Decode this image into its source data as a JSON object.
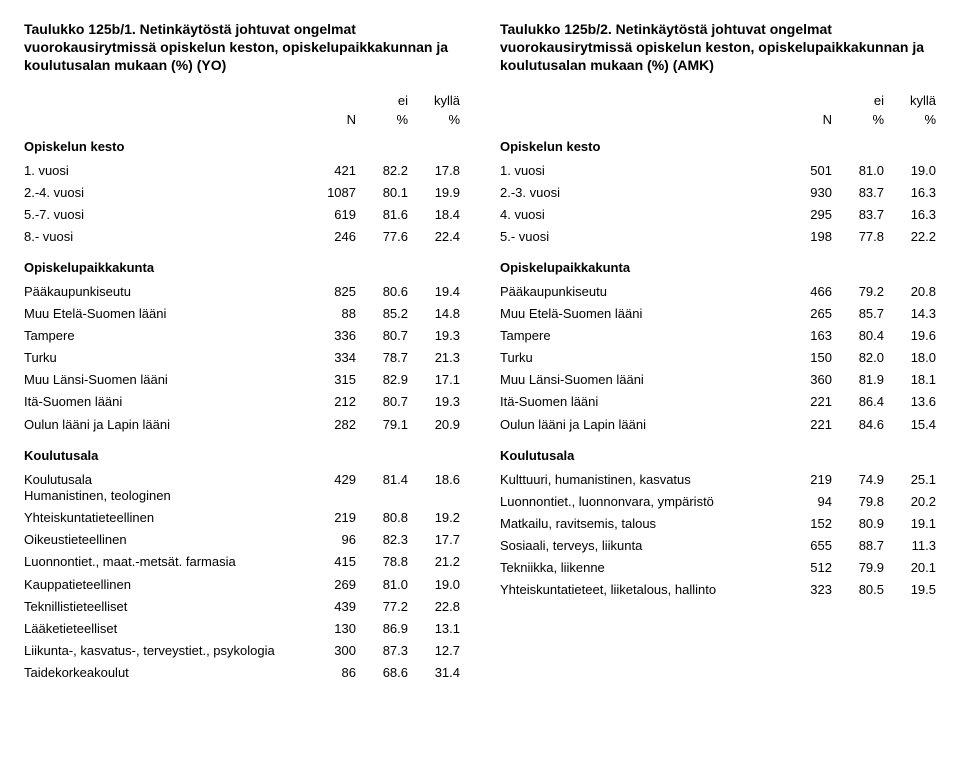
{
  "left": {
    "title": "Taulukko 125b/1. Netinkäytöstä johtuvat ongelmat vuorokausirytmissä opiskelun keston, opiskelupaikkakunnan ja koulutusalan mukaan (%) (YO)",
    "hdr": {
      "n": "N",
      "ei": "ei",
      "ky": "kyllä",
      "p1": "%",
      "p2": "%"
    },
    "s1": {
      "title": "Opiskelun kesto",
      "rows": [
        {
          "label": "1. vuosi",
          "n": "421",
          "ei": "82.2",
          "ky": "17.8"
        },
        {
          "label": "2.-4. vuosi",
          "n": "1087",
          "ei": "80.1",
          "ky": "19.9"
        },
        {
          "label": "5.-7. vuosi",
          "n": "619",
          "ei": "81.6",
          "ky": "18.4"
        },
        {
          "label": "8.- vuosi",
          "n": "246",
          "ei": "77.6",
          "ky": "22.4"
        }
      ]
    },
    "s2": {
      "title": "Opiskelupaikkakunta",
      "rows": [
        {
          "label": "Pääkaupunkiseutu",
          "n": "825",
          "ei": "80.6",
          "ky": "19.4"
        },
        {
          "label": "Muu Etelä-Suomen lääni",
          "n": "88",
          "ei": "85.2",
          "ky": "14.8"
        },
        {
          "label": "Tampere",
          "n": "336",
          "ei": "80.7",
          "ky": "19.3"
        },
        {
          "label": "Turku",
          "n": "334",
          "ei": "78.7",
          "ky": "21.3"
        },
        {
          "label": "Muu Länsi-Suomen lääni",
          "n": "315",
          "ei": "82.9",
          "ky": "17.1"
        },
        {
          "label": "Itä-Suomen lääni",
          "n": "212",
          "ei": "80.7",
          "ky": "19.3"
        },
        {
          "label": "Oulun lääni ja Lapin lääni",
          "n": "282",
          "ei": "79.1",
          "ky": "20.9"
        }
      ]
    },
    "s3": {
      "title": "Koulutusala",
      "rows": [
        {
          "label": "Koulutusala",
          "sub": "Humanistinen, teologinen",
          "n": "429",
          "ei": "81.4",
          "ky": "18.6"
        },
        {
          "label": "Yhteiskuntatieteellinen",
          "n": "219",
          "ei": "80.8",
          "ky": "19.2"
        },
        {
          "label": "Oikeustieteellinen",
          "n": "96",
          "ei": "82.3",
          "ky": "17.7"
        },
        {
          "label": "Luonnontiet., maat.-metsät. farmasia",
          "n": "415",
          "ei": "78.8",
          "ky": "21.2"
        },
        {
          "label": "Kauppatieteellinen",
          "n": "269",
          "ei": "81.0",
          "ky": "19.0"
        },
        {
          "label": "Teknillistieteelliset",
          "n": "439",
          "ei": "77.2",
          "ky": "22.8"
        },
        {
          "label": "Lääketieteelliset",
          "n": "130",
          "ei": "86.9",
          "ky": "13.1"
        },
        {
          "label": "Liikunta-, kasvatus-, terveystiet., psykologia",
          "n": "300",
          "ei": "87.3",
          "ky": "12.7"
        },
        {
          "label": "Taidekorkeakoulut",
          "n": "86",
          "ei": "68.6",
          "ky": "31.4"
        }
      ]
    }
  },
  "right": {
    "title": "Taulukko 125b/2. Netinkäytöstä johtuvat ongelmat vuorokausirytmissä opiskelun keston, opiskelupaikkakunnan ja koulutusalan mukaan (%) (AMK)",
    "hdr": {
      "n": "N",
      "ei": "ei",
      "ky": "kyllä",
      "p1": "%",
      "p2": "%"
    },
    "s1": {
      "title": "Opiskelun kesto",
      "rows": [
        {
          "label": "1. vuosi",
          "n": "501",
          "ei": "81.0",
          "ky": "19.0"
        },
        {
          "label": "2.-3. vuosi",
          "n": "930",
          "ei": "83.7",
          "ky": "16.3"
        },
        {
          "label": "4. vuosi",
          "n": "295",
          "ei": "83.7",
          "ky": "16.3"
        },
        {
          "label": "5.- vuosi",
          "n": "198",
          "ei": "77.8",
          "ky": "22.2"
        }
      ]
    },
    "s2": {
      "title": "Opiskelupaikkakunta",
      "rows": [
        {
          "label": "Pääkaupunkiseutu",
          "n": "466",
          "ei": "79.2",
          "ky": "20.8"
        },
        {
          "label": "Muu Etelä-Suomen lääni",
          "n": "265",
          "ei": "85.7",
          "ky": "14.3"
        },
        {
          "label": "Tampere",
          "n": "163",
          "ei": "80.4",
          "ky": "19.6"
        },
        {
          "label": "Turku",
          "n": "150",
          "ei": "82.0",
          "ky": "18.0"
        },
        {
          "label": "Muu Länsi-Suomen lääni",
          "n": "360",
          "ei": "81.9",
          "ky": "18.1"
        },
        {
          "label": "Itä-Suomen lääni",
          "n": "221",
          "ei": "86.4",
          "ky": "13.6"
        },
        {
          "label": "Oulun lääni ja Lapin lääni",
          "n": "221",
          "ei": "84.6",
          "ky": "15.4"
        }
      ]
    },
    "s3": {
      "title": "Koulutusala",
      "rows": [
        {
          "label": "Kulttuuri, humanistinen, kasvatus",
          "n": "219",
          "ei": "74.9",
          "ky": "25.1"
        },
        {
          "label": "Luonnontiet., luonnonvara, ympäristö",
          "n": "94",
          "ei": "79.8",
          "ky": "20.2"
        },
        {
          "label": "Matkailu, ravitsemis, talous",
          "n": "152",
          "ei": "80.9",
          "ky": "19.1"
        },
        {
          "label": "Sosiaali, terveys, liikunta",
          "n": "655",
          "ei": "88.7",
          "ky": "11.3"
        },
        {
          "label": "Tekniikka, liikenne",
          "n": "512",
          "ei": "79.9",
          "ky": "20.1"
        },
        {
          "label": "Yhteiskuntatieteet, liiketalous, hallinto",
          "n": "323",
          "ei": "80.5",
          "ky": "19.5"
        }
      ]
    }
  }
}
